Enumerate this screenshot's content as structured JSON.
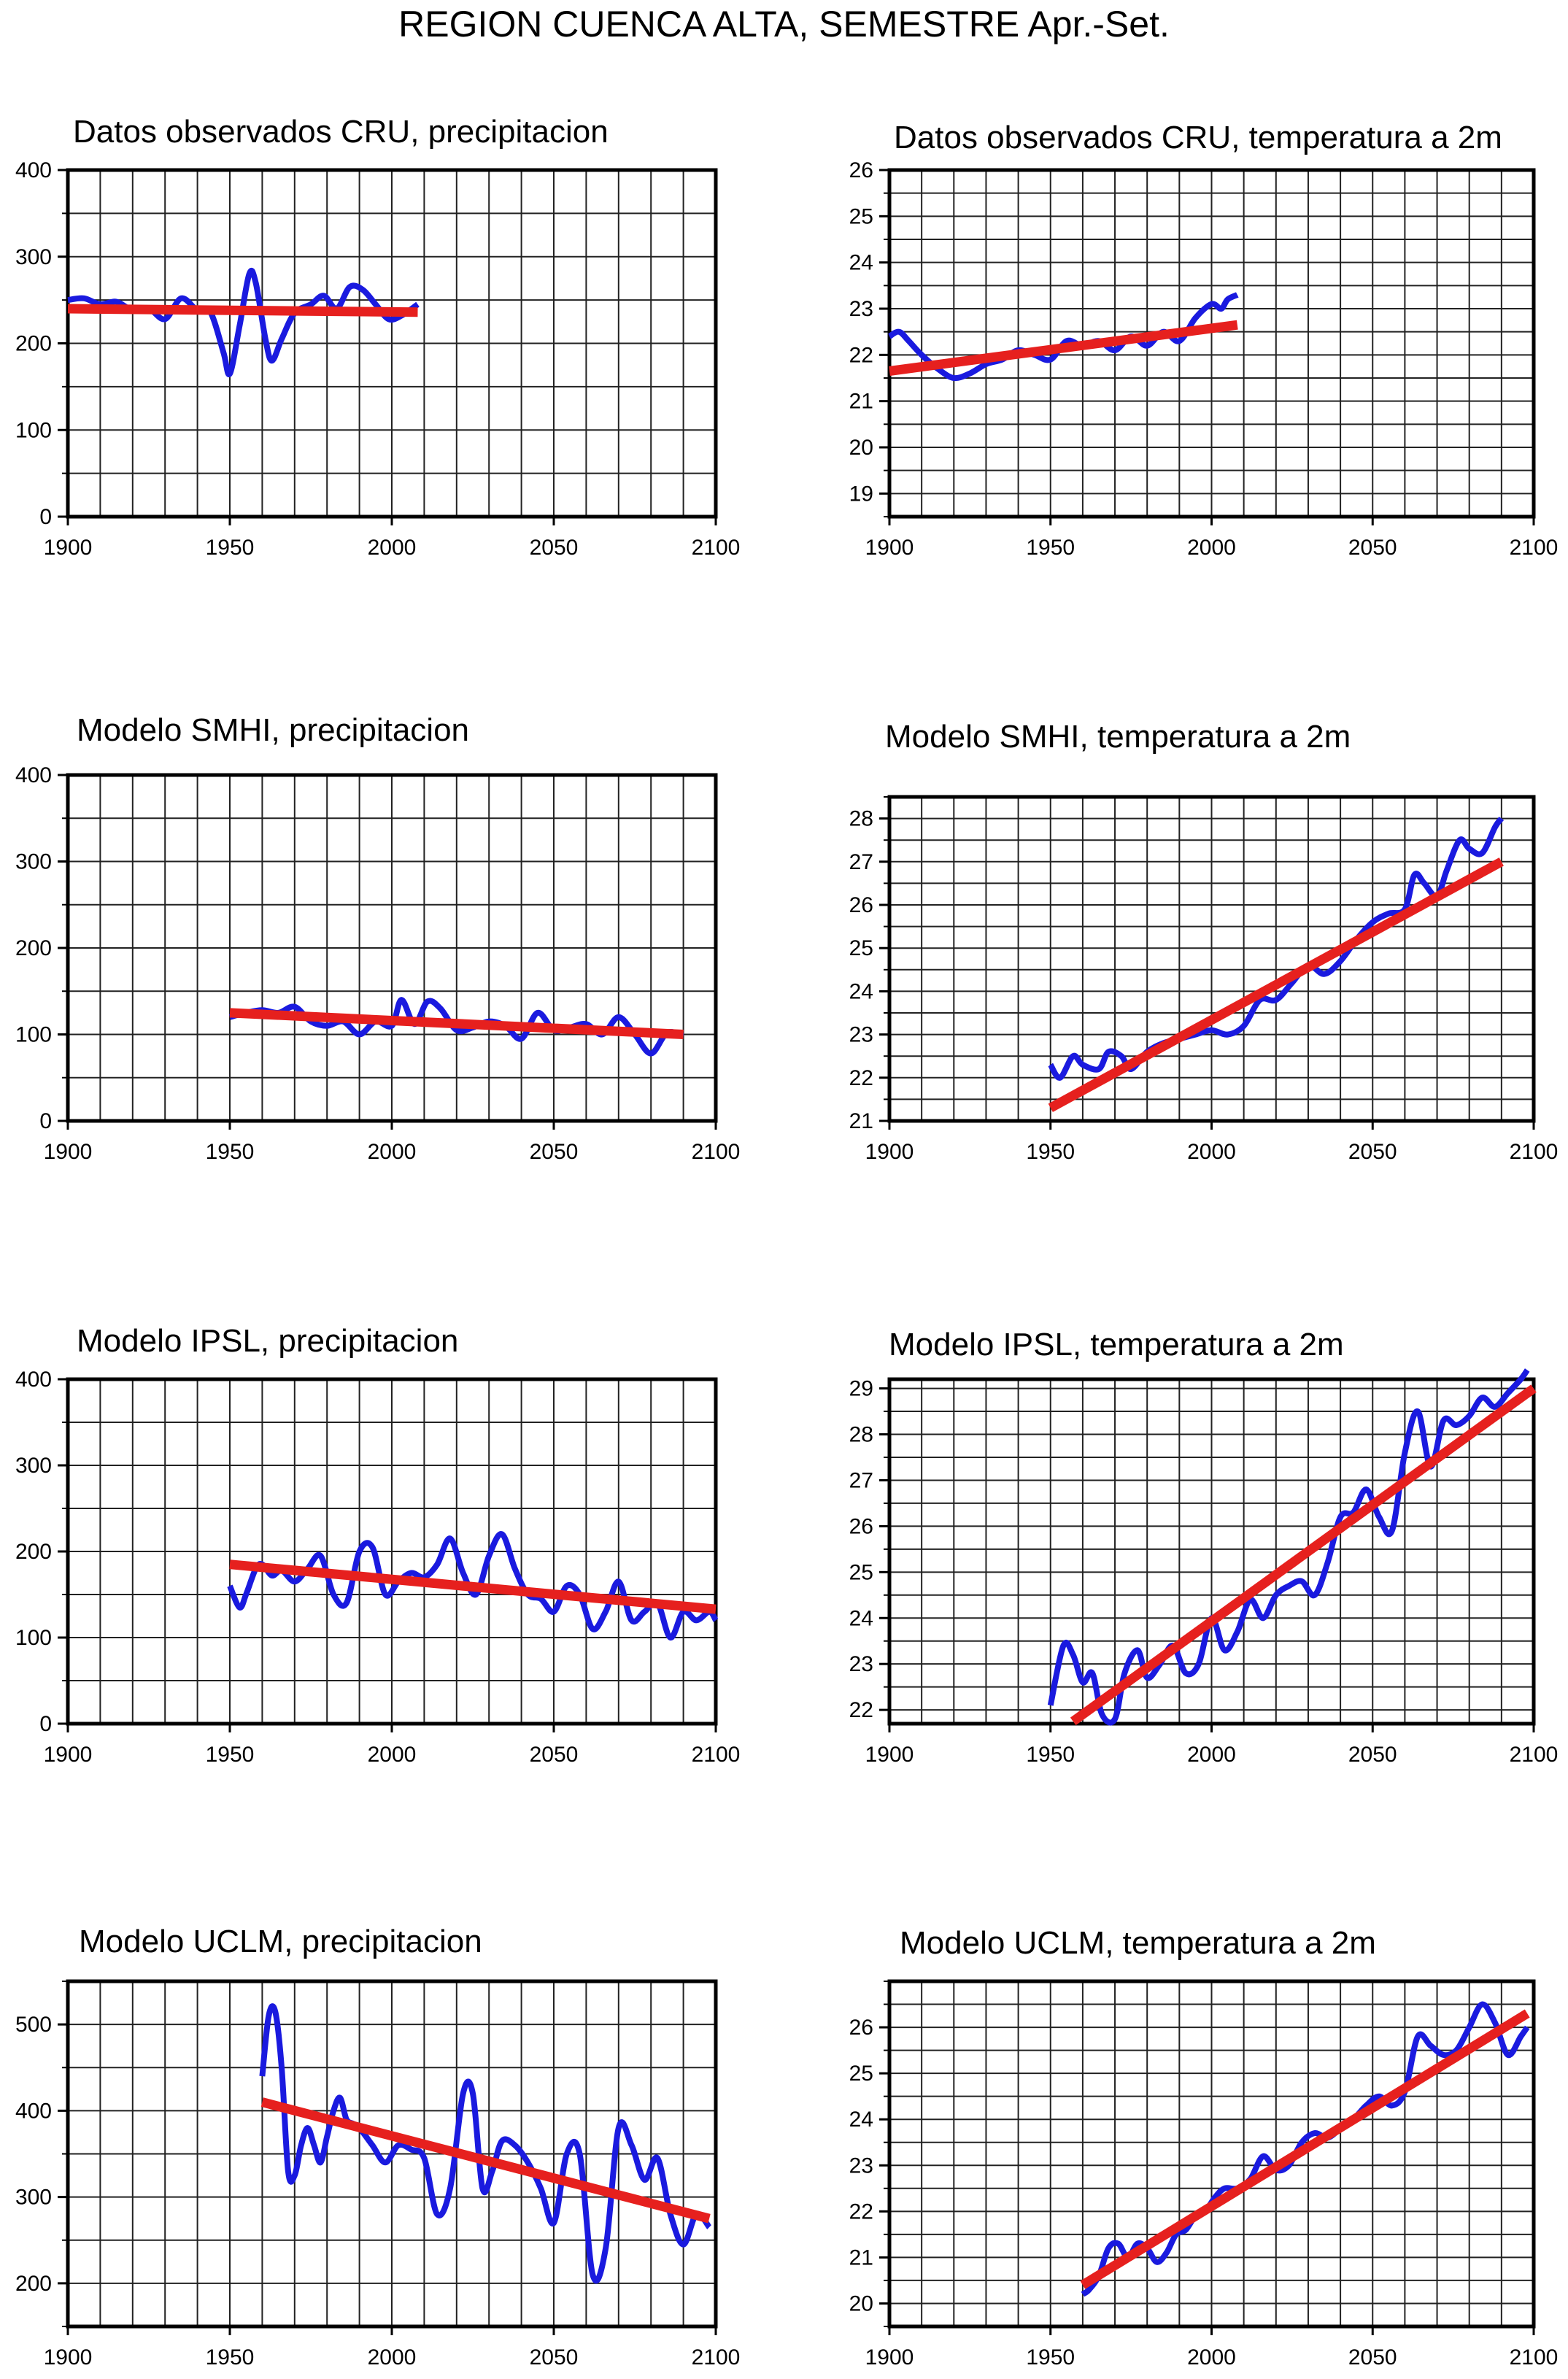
{
  "title": "REGION CUENCA ALTA, SEMESTRE Apr.-Set.",
  "colors": {
    "observed_line": "#1a1adf",
    "trend_line": "#e6201e",
    "grid": "#222222"
  },
  "chart_data": [
    {
      "type": "line",
      "title": "Datos observados CRU, precipitacion",
      "xlim": [
        1900,
        2100
      ],
      "ylim": [
        0,
        400
      ],
      "xticks": [
        1900,
        1950,
        2000,
        2050,
        2100
      ],
      "yticks": [
        0,
        100,
        200,
        300,
        400
      ],
      "grid": true,
      "series": [
        {
          "x": [
            1900,
            1905,
            1910,
            1915,
            1920,
            1925,
            1930,
            1935,
            1940,
            1944,
            1948,
            1950,
            1953,
            1956,
            1958,
            1961,
            1963,
            1966,
            1970,
            1975,
            1979,
            1983,
            1987,
            1991,
            1995,
            1999,
            2003,
            2008
          ],
          "y": [
            250,
            252,
            245,
            248,
            238,
            240,
            228,
            252,
            238,
            236,
            190,
            165,
            220,
            280,
            270,
            205,
            180,
            205,
            235,
            245,
            255,
            240,
            265,
            262,
            245,
            228,
            232,
            245
          ]
        },
        {
          "x": [
            1900,
            2008
          ],
          "y": [
            240,
            236
          ]
        }
      ]
    },
    {
      "type": "line",
      "title": "Datos observados CRU, temperatura a 2m",
      "xlim": [
        1900,
        2100
      ],
      "ylim": [
        18.5,
        26
      ],
      "xticks": [
        1900,
        1950,
        2000,
        2050,
        2100
      ],
      "yticks": [
        19,
        20,
        21,
        22,
        23,
        24,
        25,
        26
      ],
      "grid": true,
      "series": [
        {
          "x": [
            1900,
            1903,
            1906,
            1910,
            1915,
            1920,
            1925,
            1930,
            1935,
            1940,
            1945,
            1950,
            1955,
            1960,
            1965,
            1970,
            1975,
            1980,
            1985,
            1990,
            1995,
            2000,
            2003,
            2005,
            2008
          ],
          "y": [
            22.4,
            22.5,
            22.3,
            22.0,
            21.7,
            21.5,
            21.6,
            21.8,
            21.9,
            22.1,
            22.0,
            21.9,
            22.3,
            22.2,
            22.3,
            22.1,
            22.4,
            22.2,
            22.5,
            22.3,
            22.8,
            23.1,
            23.0,
            23.2,
            23.3
          ]
        },
        {
          "x": [
            1900,
            2008
          ],
          "y": [
            21.65,
            22.65
          ]
        }
      ]
    },
    {
      "type": "line",
      "title": "Modelo SMHI, precipitacion",
      "xlim": [
        1900,
        2100
      ],
      "ylim": [
        0,
        400
      ],
      "xticks": [
        1900,
        1950,
        2000,
        2050,
        2100
      ],
      "yticks": [
        0,
        100,
        200,
        300,
        400
      ],
      "grid": true,
      "series": [
        {
          "x": [
            1950,
            1955,
            1960,
            1965,
            1970,
            1975,
            1980,
            1985,
            1990,
            1995,
            2000,
            2003,
            2007,
            2011,
            2015,
            2020,
            2025,
            2030,
            2035,
            2040,
            2045,
            2050,
            2055,
            2060,
            2065,
            2070,
            2075,
            2080,
            2085,
            2090
          ],
          "y": [
            120,
            125,
            128,
            125,
            132,
            115,
            110,
            115,
            100,
            115,
            110,
            140,
            112,
            138,
            130,
            105,
            108,
            115,
            110,
            95,
            125,
            105,
            108,
            112,
            100,
            120,
            100,
            78,
            102,
            98
          ]
        },
        {
          "x": [
            1950,
            2090
          ],
          "y": [
            125,
            100
          ]
        }
      ]
    },
    {
      "type": "line",
      "title": "Modelo SMHI, temperatura a 2m",
      "xlim": [
        1900,
        2100
      ],
      "ylim": [
        21,
        28.5
      ],
      "xticks": [
        1900,
        1950,
        2000,
        2050,
        2100
      ],
      "yticks": [
        21,
        22,
        23,
        24,
        25,
        26,
        27,
        28
      ],
      "grid": true,
      "series": [
        {
          "x": [
            1950,
            1953,
            1957,
            1960,
            1965,
            1968,
            1972,
            1975,
            1980,
            1985,
            1990,
            1995,
            2000,
            2005,
            2010,
            2015,
            2020,
            2025,
            2030,
            2035,
            2040,
            2045,
            2050,
            2055,
            2060,
            2063,
            2066,
            2070,
            2073,
            2077,
            2080,
            2084,
            2088,
            2090
          ],
          "y": [
            22.3,
            22.0,
            22.5,
            22.3,
            22.2,
            22.6,
            22.5,
            22.2,
            22.6,
            22.8,
            22.9,
            23.0,
            23.1,
            23.0,
            23.2,
            23.8,
            23.8,
            24.2,
            24.6,
            24.4,
            24.7,
            25.2,
            25.6,
            25.8,
            25.9,
            26.7,
            26.5,
            26.2,
            26.8,
            27.5,
            27.3,
            27.2,
            27.8,
            28.0
          ]
        },
        {
          "x": [
            1950,
            2090
          ],
          "y": [
            21.3,
            27.0
          ]
        }
      ]
    },
    {
      "type": "line",
      "title": "Modelo IPSL, precipitacion",
      "xlim": [
        1900,
        2100
      ],
      "ylim": [
        0,
        400
      ],
      "xticks": [
        1900,
        1950,
        2000,
        2050,
        2100
      ],
      "yticks": [
        0,
        100,
        200,
        300,
        400
      ],
      "grid": true,
      "series": [
        {
          "x": [
            1950,
            1953,
            1955,
            1958,
            1960,
            1963,
            1966,
            1970,
            1974,
            1978,
            1982,
            1986,
            1990,
            1994,
            1998,
            2002,
            2006,
            2010,
            2014,
            2018,
            2022,
            2026,
            2030,
            2034,
            2038,
            2042,
            2046,
            2050,
            2054,
            2058,
            2062,
            2066,
            2070,
            2074,
            2078,
            2082,
            2086,
            2090,
            2094,
            2098,
            2100
          ],
          "y": [
            160,
            135,
            150,
            180,
            185,
            172,
            178,
            165,
            180,
            195,
            150,
            140,
            200,
            205,
            150,
            165,
            175,
            170,
            185,
            215,
            175,
            150,
            195,
            220,
            180,
            150,
            145,
            130,
            160,
            150,
            110,
            130,
            165,
            120,
            130,
            140,
            100,
            130,
            120,
            130,
            120
          ]
        },
        {
          "x": [
            1950,
            2100
          ],
          "y": [
            185,
            133
          ]
        }
      ]
    },
    {
      "type": "line",
      "title": "Modelo IPSL, temperatura a 2m",
      "xlim": [
        1900,
        2100
      ],
      "ylim": [
        21.7,
        29.2
      ],
      "xticks": [
        1900,
        1950,
        2000,
        2050,
        2100
      ],
      "yticks": [
        22,
        23,
        24,
        25,
        26,
        27,
        28,
        29
      ],
      "grid": true,
      "series": [
        {
          "x": [
            1950,
            1954,
            1957,
            1960,
            1963,
            1966,
            1970,
            1973,
            1977,
            1980,
            1984,
            1988,
            1992,
            1996,
            2000,
            2004,
            2008,
            2012,
            2016,
            2020,
            2024,
            2028,
            2032,
            2036,
            2040,
            2044,
            2048,
            2052,
            2056,
            2060,
            2064,
            2068,
            2072,
            2076,
            2080,
            2084,
            2088,
            2092,
            2096,
            2098
          ],
          "y": [
            22.1,
            23.4,
            23.2,
            22.6,
            22.8,
            21.9,
            21.8,
            22.8,
            23.3,
            22.7,
            23.0,
            23.4,
            22.8,
            23.0,
            24.0,
            23.3,
            23.7,
            24.4,
            24.0,
            24.5,
            24.7,
            24.8,
            24.5,
            25.2,
            26.2,
            26.3,
            26.8,
            26.2,
            25.9,
            27.6,
            28.5,
            27.3,
            28.3,
            28.2,
            28.4,
            28.8,
            28.6,
            28.9,
            29.2,
            29.4
          ]
        },
        {
          "x": [
            1957,
            2100
          ],
          "y": [
            21.75,
            29.0
          ]
        }
      ]
    },
    {
      "type": "line",
      "title": "Modelo UCLM, precipitacion",
      "xlim": [
        1900,
        2100
      ],
      "ylim": [
        150,
        550
      ],
      "xticks": [
        1900,
        1950,
        2000,
        2050,
        2100
      ],
      "yticks": [
        200,
        300,
        400,
        500
      ],
      "grid": true,
      "series": [
        {
          "x": [
            1960,
            1962,
            1964,
            1966,
            1968,
            1970,
            1972,
            1974,
            1976,
            1978,
            1980,
            1982,
            1984,
            1986,
            1988,
            1990,
            1994,
            1998,
            2002,
            2006,
            2010,
            2014,
            2018,
            2022,
            2025,
            2028,
            2031,
            2034,
            2038,
            2042,
            2046,
            2050,
            2054,
            2058,
            2062,
            2066,
            2070,
            2074,
            2078,
            2082,
            2086,
            2090,
            2094,
            2098
          ],
          "y": [
            440,
            510,
            515,
            450,
            330,
            325,
            360,
            380,
            360,
            340,
            370,
            400,
            415,
            390,
            385,
            380,
            360,
            340,
            360,
            355,
            345,
            280,
            310,
            420,
            420,
            310,
            330,
            365,
            360,
            340,
            310,
            270,
            350,
            350,
            210,
            240,
            380,
            360,
            320,
            345,
            280,
            245,
            280,
            265
          ]
        },
        {
          "x": [
            1960,
            2098
          ],
          "y": [
            410,
            275
          ]
        }
      ]
    },
    {
      "type": "line",
      "title": "Modelo UCLM, temperatura a 2m",
      "xlim": [
        1900,
        2100
      ],
      "ylim": [
        19.5,
        27
      ],
      "xticks": [
        1900,
        1950,
        2000,
        2050,
        2100
      ],
      "yticks": [
        20,
        21,
        22,
        23,
        24,
        25,
        26
      ],
      "grid": true,
      "series": [
        {
          "x": [
            1960,
            1962,
            1965,
            1968,
            1971,
            1974,
            1977,
            1980,
            1983,
            1986,
            1989,
            1992,
            1995,
            1998,
            2001,
            2004,
            2008,
            2012,
            2016,
            2020,
            2024,
            2028,
            2032,
            2036,
            2040,
            2044,
            2048,
            2052,
            2056,
            2060,
            2064,
            2068,
            2072,
            2076,
            2080,
            2084,
            2088,
            2092,
            2096,
            2098
          ],
          "y": [
            20.2,
            20.3,
            20.6,
            21.2,
            21.3,
            21.0,
            21.3,
            21.2,
            20.9,
            21.1,
            21.5,
            21.6,
            21.9,
            22.0,
            22.3,
            22.5,
            22.5,
            22.7,
            23.2,
            22.9,
            23.0,
            23.5,
            23.7,
            23.6,
            23.8,
            24.0,
            24.3,
            24.5,
            24.3,
            24.6,
            25.8,
            25.6,
            25.4,
            25.5,
            26.0,
            26.5,
            26.1,
            25.4,
            25.8,
            26.0
          ]
        },
        {
          "x": [
            1960,
            2098
          ],
          "y": [
            20.4,
            26.3
          ]
        }
      ]
    }
  ]
}
